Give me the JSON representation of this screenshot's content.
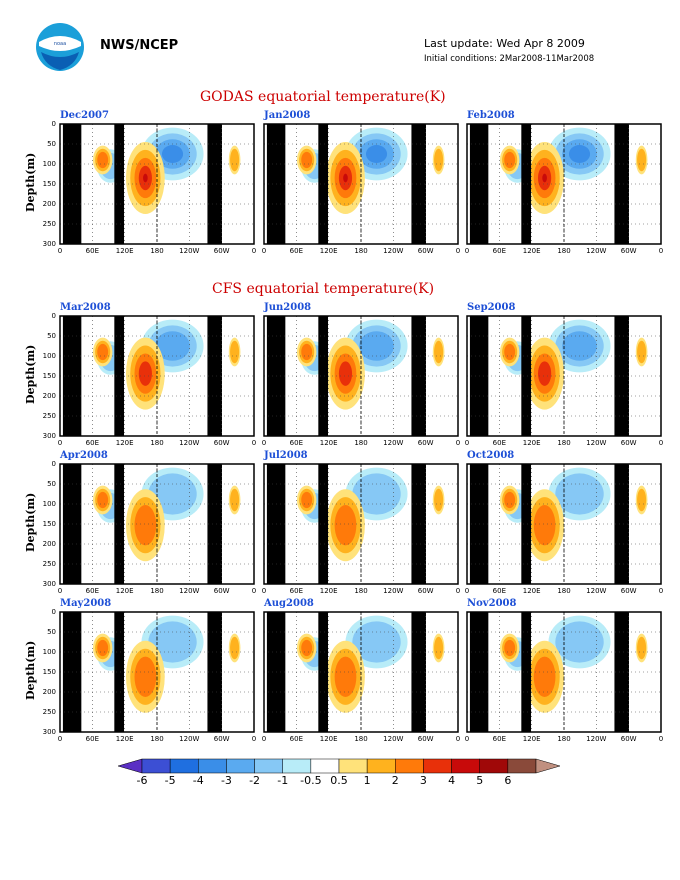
{
  "header": {
    "org": "NWS/NCEP",
    "last_update": "Last update: Wed Apr 8 2009",
    "initial_conditions": "Initial conditions: 2Mar2008-11Mar2008"
  },
  "sections": {
    "godas_title": "GODAS equatorial temperature(K)",
    "cfs_title": "CFS equatorial temperature(K)"
  },
  "ylabel": "Depth(m)",
  "colors": {
    "title_red": "#cc0000",
    "panel_title_blue": "#1d4fd6",
    "land_black": "#000000"
  },
  "chart_data": {
    "type": "heatmap",
    "variable": "equatorial temperature anomaly",
    "units": "K",
    "x_ticks": [
      "0",
      "60E",
      "120E",
      "180",
      "120W",
      "60W",
      "0"
    ],
    "y_ticks": [
      "0",
      "50",
      "100",
      "150",
      "200",
      "250",
      "300"
    ],
    "ylim": [
      0,
      300
    ],
    "y_inverted": true,
    "contour_levels": [
      -6,
      -5,
      -4,
      -3,
      -2,
      -1,
      -0.5,
      0.5,
      1,
      2,
      3,
      4,
      5,
      6
    ],
    "colorbar_colors": [
      "#5a2fc4",
      "#3c4fd4",
      "#1f6fe0",
      "#3a8ee8",
      "#5aaaf0",
      "#86c8f5",
      "#b8ecf8",
      "#ffffff",
      "#ffe27a",
      "#ffb21e",
      "#ff7a0a",
      "#e8300a",
      "#c80a0a",
      "#a00808",
      "#8a4a3a",
      "#c09080"
    ],
    "panels": [
      {
        "label": "Dec2007",
        "group": "GODAS"
      },
      {
        "label": "Jan2008",
        "group": "GODAS"
      },
      {
        "label": "Feb2008",
        "group": "GODAS"
      },
      {
        "label": "Mar2008",
        "group": "CFS"
      },
      {
        "label": "Jun2008",
        "group": "CFS"
      },
      {
        "label": "Sep2008",
        "group": "CFS"
      },
      {
        "label": "Apr2008",
        "group": "CFS"
      },
      {
        "label": "Jul2008",
        "group": "CFS"
      },
      {
        "label": "Oct2008",
        "group": "CFS"
      },
      {
        "label": "May2008",
        "group": "CFS"
      },
      {
        "label": "Aug2008",
        "group": "CFS"
      },
      {
        "label": "Nov2008",
        "group": "CFS"
      }
    ]
  }
}
